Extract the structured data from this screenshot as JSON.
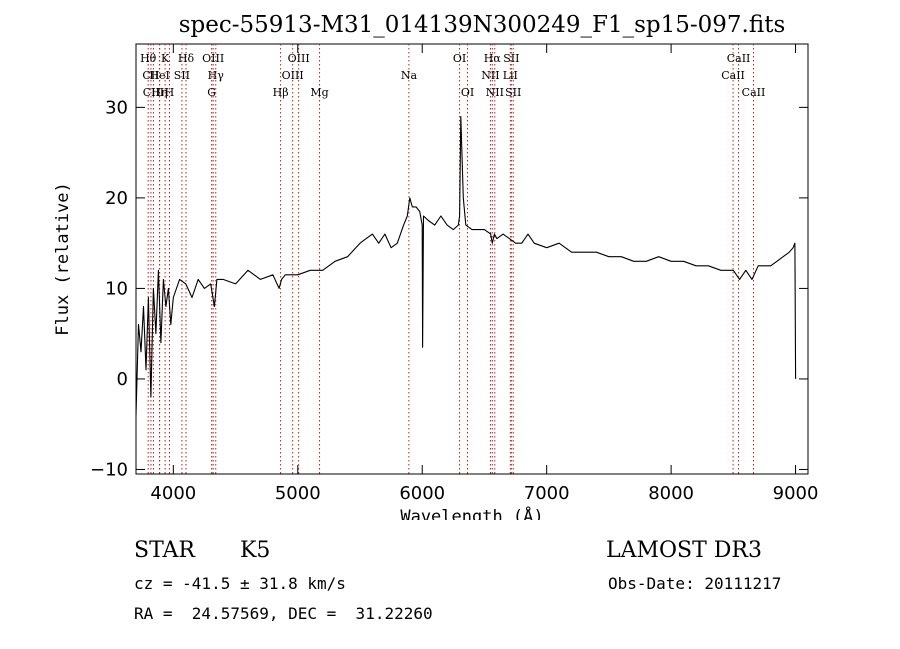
{
  "chart_data": {
    "type": "line",
    "title": "spec-55913-M31_014139N300249_F1_sp15-097.fits",
    "xlabel": "Wavelength (Å)",
    "ylabel": "Flux (relative)",
    "xlim": [
      3700,
      9100
    ],
    "ylim": [
      -10.5,
      37
    ],
    "xticks": [
      4000,
      5000,
      6000,
      7000,
      8000,
      9000
    ],
    "yticks": [
      -10,
      0,
      10,
      20,
      30
    ],
    "grid": false,
    "line_color": "#000000",
    "marker_color": "#b22222",
    "lines": [
      {
        "label": "Hθ",
        "x": 3798,
        "row": 0
      },
      {
        "label": "CII",
        "x": 3820,
        "row": 1
      },
      {
        "label": "CIII",
        "x": 3840,
        "row": 2
      },
      {
        "label": "Hη",
        "x": 3889,
        "row": 2
      },
      {
        "label": "HeI",
        "x": 3890,
        "row": 1
      },
      {
        "label": "K",
        "x": 3934,
        "row": 0
      },
      {
        "label": "H",
        "x": 3969,
        "row": 2
      },
      {
        "label": "SII",
        "x": 4069,
        "row": 1
      },
      {
        "label": "Hδ",
        "x": 4102,
        "row": 0
      },
      {
        "label": "OIII",
        "x": 4320,
        "row": 0
      },
      {
        "label": "G",
        "x": 4308,
        "row": 2
      },
      {
        "label": "Hγ",
        "x": 4341,
        "row": 1
      },
      {
        "label": "Hβ",
        "x": 4862,
        "row": 2
      },
      {
        "label": "OIII",
        "x": 4959,
        "row": 1
      },
      {
        "label": "OIII",
        "x": 5007,
        "row": 0
      },
      {
        "label": "Mg",
        "x": 5175,
        "row": 2
      },
      {
        "label": "Na",
        "x": 5893,
        "row": 1
      },
      {
        "label": "OI",
        "x": 6300,
        "row": 0
      },
      {
        "label": "OI",
        "x": 6364,
        "row": 2
      },
      {
        "label": "NII",
        "x": 6548,
        "row": 1
      },
      {
        "label": "Hα",
        "x": 6563,
        "row": 0
      },
      {
        "label": "NII",
        "x": 6583,
        "row": 2
      },
      {
        "label": "LiI",
        "x": 6708,
        "row": 1
      },
      {
        "label": "SII",
        "x": 6716,
        "row": 0
      },
      {
        "label": "SII",
        "x": 6731,
        "row": 2
      },
      {
        "label": "CaII",
        "x": 8498,
        "row": 1
      },
      {
        "label": "CaII",
        "x": 8542,
        "row": 0
      },
      {
        "label": "CaII",
        "x": 8662,
        "row": 2
      }
    ],
    "spectrum": {
      "x": [
        3700,
        3720,
        3740,
        3760,
        3780,
        3800,
        3820,
        3840,
        3860,
        3880,
        3900,
        3920,
        3940,
        3960,
        3980,
        4000,
        4050,
        4100,
        4150,
        4200,
        4250,
        4300,
        4330,
        4350,
        4400,
        4500,
        4600,
        4700,
        4800,
        4850,
        4870,
        4900,
        5000,
        5100,
        5200,
        5300,
        5400,
        5500,
        5550,
        5600,
        5650,
        5700,
        5750,
        5800,
        5850,
        5880,
        5900,
        5920,
        5950,
        5980,
        6000,
        6003,
        6010,
        6050,
        6100,
        6150,
        6200,
        6250,
        6290,
        6300,
        6310,
        6330,
        6350,
        6400,
        6450,
        6500,
        6550,
        6563,
        6580,
        6600,
        6650,
        6700,
        6750,
        6800,
        6850,
        6900,
        7000,
        7100,
        7200,
        7300,
        7400,
        7500,
        7600,
        7700,
        7800,
        7900,
        8000,
        8100,
        8200,
        8300,
        8400,
        8500,
        8550,
        8600,
        8650,
        8700,
        8750,
        8800,
        8850,
        8900,
        8950,
        8980,
        8995,
        9000
      ],
      "y": [
        -4,
        6,
        3,
        8,
        1,
        9,
        -2,
        10,
        5,
        12,
        4,
        11,
        8,
        10,
        6,
        9,
        11,
        10.5,
        9,
        11,
        10,
        10.5,
        8,
        11,
        11,
        10.5,
        12,
        11,
        11.5,
        10,
        11,
        11.5,
        11.5,
        12,
        12,
        13,
        13.5,
        15,
        15.5,
        16,
        15,
        16,
        14.5,
        15,
        17,
        18,
        20,
        19,
        19,
        18.5,
        17,
        3.5,
        18,
        17.5,
        17,
        18,
        17,
        16.5,
        17,
        18,
        29,
        20,
        17,
        16.5,
        16.5,
        16.5,
        16,
        15,
        16,
        15.5,
        16,
        15.5,
        15,
        15,
        16,
        15,
        14.5,
        15,
        14,
        14,
        14,
        13.5,
        13.5,
        13,
        13,
        13.5,
        13,
        13,
        12.5,
        12.5,
        12,
        12,
        11,
        12,
        11,
        12.5,
        12.5,
        12.5,
        13,
        13.5,
        14,
        14.5,
        15,
        0
      ]
    }
  },
  "footer": {
    "object_class": "STAR",
    "subclass": "K5",
    "survey": "LAMOST DR3",
    "redshift": "cz = -41.5 ± 31.8 km/s",
    "obs_date": "Obs-Date: 20111217",
    "coords": "RA =  24.57569, DEC =  31.22260"
  }
}
